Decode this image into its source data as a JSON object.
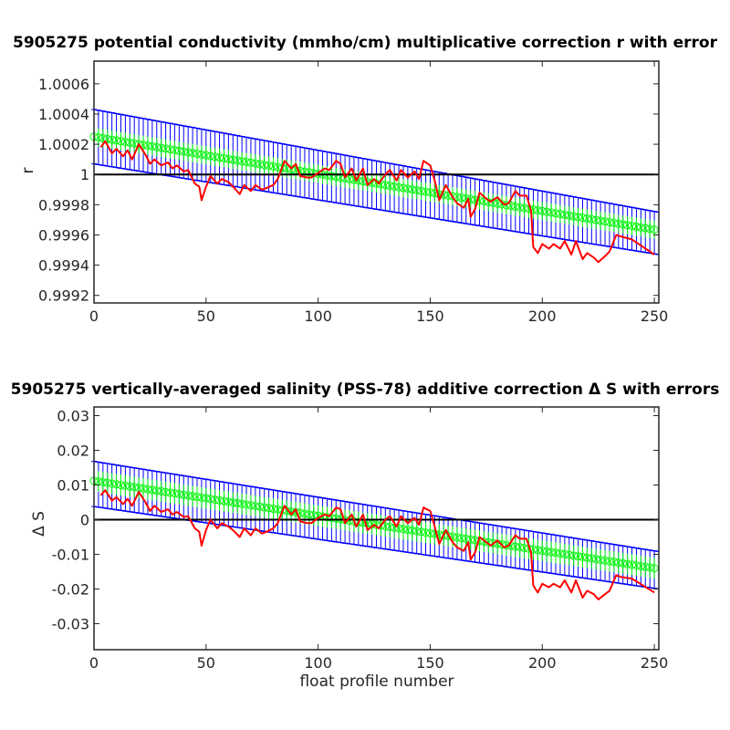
{
  "chart_data": [
    {
      "type": "line",
      "title": "5905275 potential conductivity (mmho/cm) multiplicative correction r with error",
      "xlabel": "",
      "ylabel": "r",
      "xlim": [
        0,
        252
      ],
      "ylim": [
        0.99915,
        1.00075
      ],
      "xticks": [
        "0",
        "50",
        "100",
        "150",
        "200",
        "250"
      ],
      "yticks": [
        "0.9992",
        "0.9994",
        "0.9996",
        "0.9998",
        "1",
        "1.0002",
        "1.0004",
        "1.0006"
      ],
      "xtick_values": [
        0,
        50,
        100,
        150,
        200,
        250
      ],
      "ytick_values": [
        0.9992,
        0.9994,
        0.9996,
        0.9998,
        1.0,
        1.0002,
        1.0004,
        1.0006
      ],
      "reference_line": 1.0,
      "grid": false,
      "series": [
        {
          "kind": "fit",
          "color": "#00ff00",
          "x": [
            0,
            252
          ],
          "y": [
            1.00025,
            0.99963
          ],
          "error": 6e-05
        },
        {
          "kind": "error-bound",
          "color": "#0000ff",
          "x": [
            0,
            252
          ],
          "upper": [
            1.00043,
            0.99975
          ],
          "lower": [
            1.00007,
            0.99947
          ]
        },
        {
          "kind": "profile-correction",
          "color": "#ff0000",
          "x": [
            3,
            5,
            8,
            10,
            13,
            15,
            17,
            20,
            23,
            25,
            27,
            30,
            33,
            35,
            37,
            40,
            42,
            45,
            47,
            48,
            50,
            52,
            55,
            57,
            60,
            62,
            65,
            67,
            70,
            72,
            75,
            77,
            80,
            82,
            85,
            88,
            90,
            92,
            95,
            97,
            100,
            103,
            105,
            108,
            110,
            112,
            115,
            117,
            120,
            122,
            125,
            127,
            130,
            132,
            135,
            137,
            140,
            143,
            145,
            147,
            150,
            152,
            154,
            157,
            160,
            162,
            165,
            167,
            168,
            170,
            172,
            175,
            177,
            180,
            183,
            185,
            188,
            190,
            193,
            195,
            196,
            198,
            200,
            203,
            205,
            208,
            210,
            213,
            215,
            218,
            220,
            223,
            225,
            228,
            230,
            233,
            235,
            240,
            245,
            250
          ],
          "y": [
            1.00018,
            1.00022,
            1.00014,
            1.00017,
            1.00012,
            1.00016,
            1.0001,
            1.0002,
            1.00013,
            1.00007,
            1.0001,
            1.00006,
            1.00008,
            1.00004,
            1.00006,
            1.00002,
            1.00003,
            0.99994,
            0.99992,
            0.99983,
            0.99992,
            0.99999,
            0.99994,
            0.99997,
            0.99995,
            0.99992,
            0.99987,
            0.99993,
            0.99989,
            0.99993,
            0.9999,
            0.99991,
            0.99993,
            0.99997,
            1.00009,
            1.00004,
            1.00007,
            0.99999,
            0.99998,
            0.99998,
            1.00001,
            1.00004,
            1.00003,
            1.00009,
            1.00007,
            0.99998,
            1.00004,
            0.99996,
            1.00004,
            0.99993,
            0.99997,
            0.99994,
            1.0,
            1.00003,
            0.99996,
            1.00003,
            0.99998,
            1.00002,
            0.99997,
            1.00009,
            1.00006,
            0.99996,
            0.99983,
            0.99993,
            0.99985,
            0.99981,
            0.99978,
            0.99984,
            0.99972,
            0.99977,
            0.99988,
            0.99984,
            0.99982,
            0.99985,
            0.9998,
            0.99981,
            0.99989,
            0.99986,
            0.99986,
            0.99976,
            0.99952,
            0.99948,
            0.99954,
            0.99951,
            0.99954,
            0.99951,
            0.99956,
            0.99947,
            0.99956,
            0.99944,
            0.99948,
            0.99945,
            0.99942,
            0.99946,
            0.99949,
            0.9996,
            0.99959,
            0.99957,
            0.99952,
            0.99947
          ]
        }
      ]
    },
    {
      "type": "line",
      "title": "5905275 vertically-averaged salinity (PSS-78) additive correction Δ S with errors",
      "xlabel": "float profile number",
      "ylabel": "Δ S",
      "xlim": [
        0,
        252
      ],
      "ylim": [
        -0.0375,
        0.0325
      ],
      "xticks": [
        "0",
        "50",
        "100",
        "150",
        "200",
        "250"
      ],
      "yticks": [
        "-0.03",
        "-0.02",
        "-0.01",
        "0",
        "0.01",
        "0.02",
        "0.03"
      ],
      "xtick_values": [
        0,
        50,
        100,
        150,
        200,
        250
      ],
      "ytick_values": [
        -0.03,
        -0.02,
        -0.01,
        0,
        0.01,
        0.02,
        0.03
      ],
      "reference_line": 0,
      "grid": false,
      "series": [
        {
          "kind": "fit",
          "color": "#00ff00",
          "x": [
            0,
            252
          ],
          "y": [
            0.0112,
            -0.0142
          ],
          "error": 0.003
        },
        {
          "kind": "error-bound",
          "color": "#0000ff",
          "x": [
            0,
            252
          ],
          "upper": [
            0.0168,
            -0.0092
          ],
          "lower": [
            0.0038,
            -0.02
          ]
        },
        {
          "kind": "profile-correction",
          "color": "#ff0000",
          "x": [
            3,
            5,
            8,
            10,
            13,
            15,
            17,
            20,
            23,
            25,
            27,
            30,
            33,
            35,
            37,
            40,
            42,
            45,
            47,
            48,
            50,
            52,
            55,
            57,
            60,
            62,
            65,
            67,
            70,
            72,
            75,
            77,
            80,
            82,
            85,
            88,
            90,
            92,
            95,
            97,
            100,
            103,
            105,
            108,
            110,
            112,
            115,
            117,
            120,
            122,
            125,
            127,
            130,
            132,
            135,
            137,
            140,
            143,
            145,
            147,
            150,
            152,
            154,
            157,
            160,
            162,
            165,
            167,
            168,
            170,
            172,
            175,
            177,
            180,
            183,
            185,
            188,
            190,
            193,
            195,
            196,
            198,
            200,
            203,
            205,
            208,
            210,
            213,
            215,
            218,
            220,
            223,
            225,
            228,
            230,
            233,
            235,
            240,
            245,
            250
          ],
          "y": [
            0.007,
            0.0085,
            0.0055,
            0.0065,
            0.0045,
            0.006,
            0.004,
            0.008,
            0.005,
            0.0025,
            0.004,
            0.0022,
            0.003,
            0.0015,
            0.0022,
            0.0008,
            0.001,
            -0.0025,
            -0.0035,
            -0.0075,
            -0.003,
            0.0,
            -0.0025,
            -0.001,
            -0.002,
            -0.003,
            -0.005,
            -0.0025,
            -0.0045,
            -0.0025,
            -0.004,
            -0.0035,
            -0.0025,
            -0.001,
            0.004,
            0.0015,
            0.003,
            -0.0005,
            -0.001,
            -0.001,
            0.0005,
            0.0015,
            0.001,
            0.0035,
            0.003,
            -0.001,
            0.0015,
            -0.002,
            0.0015,
            -0.003,
            -0.0015,
            -0.0025,
            0.0,
            0.001,
            -0.002,
            0.001,
            -0.001,
            0.0005,
            -0.0015,
            0.0035,
            0.0025,
            -0.002,
            -0.007,
            -0.003,
            -0.0065,
            -0.008,
            -0.009,
            -0.0065,
            -0.0115,
            -0.0095,
            -0.005,
            -0.0065,
            -0.0075,
            -0.006,
            -0.008,
            -0.0075,
            -0.0045,
            -0.0055,
            -0.0055,
            -0.0095,
            -0.019,
            -0.021,
            -0.0185,
            -0.0195,
            -0.0185,
            -0.0195,
            -0.0175,
            -0.021,
            -0.0175,
            -0.0225,
            -0.0205,
            -0.0215,
            -0.023,
            -0.0215,
            -0.0205,
            -0.016,
            -0.0165,
            -0.017,
            -0.019,
            -0.021
          ]
        }
      ]
    }
  ]
}
